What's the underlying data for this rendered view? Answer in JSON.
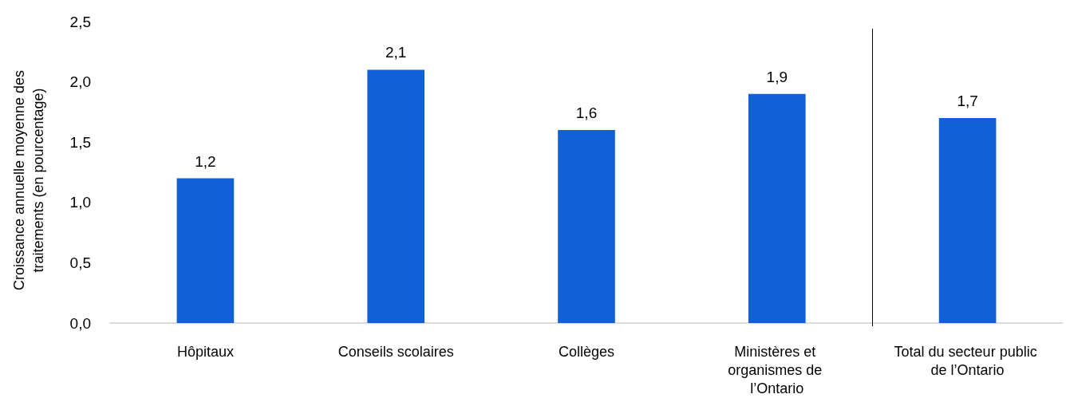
{
  "chart_data": {
    "type": "bar",
    "ylabel": "Croissance annuelle moyenne des traitements (en pourcentage)",
    "categories": [
      "Hôpitaux",
      "Conseils scolaires",
      "Collèges",
      "Ministères et organismes de l’Ontario",
      "Total du secteur public de l’Ontario"
    ],
    "values": [
      1.2,
      2.1,
      1.6,
      1.9,
      1.7
    ],
    "value_labels": [
      "1,2",
      "2,1",
      "1,6",
      "1,9",
      "1,7"
    ],
    "color": "#1160d8",
    "ylim": [
      0,
      2.5
    ],
    "yticks": [
      {
        "value": 0,
        "label": "0,0"
      },
      {
        "value": 0.5,
        "label": "0,5"
      },
      {
        "value": 1,
        "label": "1,0"
      },
      {
        "value": 1.5,
        "label": "1,5"
      },
      {
        "value": 2,
        "label": "2,0"
      },
      {
        "value": 2.5,
        "label": "2,5"
      }
    ],
    "grid": false
  }
}
